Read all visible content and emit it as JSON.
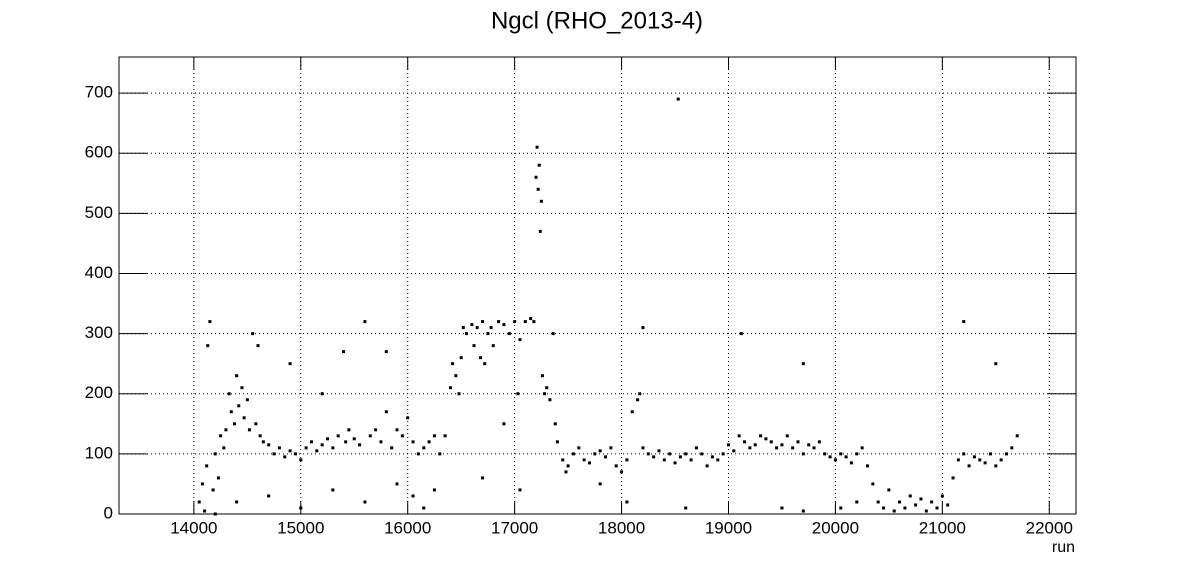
{
  "chart_data": {
    "type": "scatter",
    "title": "Ngcl (RHO_2013-4)",
    "x_label": "run",
    "xlim": [
      13300,
      22250
    ],
    "ylim": [
      0,
      760
    ],
    "xticks": [
      14000,
      15000,
      16000,
      17000,
      18000,
      19000,
      20000,
      21000,
      22000
    ],
    "yticks": [
      0,
      100,
      200,
      300,
      400,
      500,
      600,
      700
    ],
    "grid": true,
    "color": "#000000",
    "x": [
      14050,
      14080,
      14100,
      14120,
      14130,
      14150,
      14180,
      14200,
      14230,
      14250,
      14280,
      14300,
      14330,
      14350,
      14380,
      14400,
      14420,
      14450,
      14470,
      14500,
      14520,
      14550,
      14580,
      14600,
      14620,
      14650,
      14700,
      14750,
      14800,
      14850,
      14900,
      14950,
      15000,
      15050,
      15100,
      15150,
      15200,
      15250,
      15300,
      15350,
      15400,
      15420,
      15450,
      15500,
      15550,
      15600,
      15650,
      15700,
      15750,
      15800,
      15850,
      15900,
      15950,
      16000,
      16050,
      16100,
      16150,
      16200,
      16250,
      16300,
      16350,
      16400,
      16420,
      16450,
      16480,
      16500,
      16520,
      16550,
      16600,
      16620,
      16650,
      16680,
      16700,
      16720,
      16750,
      16780,
      16800,
      16850,
      16900,
      16950,
      17000,
      17030,
      17050,
      17100,
      17150,
      17180,
      17200,
      17210,
      17220,
      17230,
      17240,
      17250,
      17260,
      17280,
      17300,
      17330,
      17360,
      17380,
      17400,
      17450,
      17480,
      17500,
      17550,
      17600,
      17650,
      17700,
      17750,
      17800,
      17850,
      17900,
      17950,
      18000,
      18050,
      18100,
      18150,
      18170,
      18200,
      18250,
      18300,
      18350,
      18400,
      18450,
      18500,
      18530,
      18550,
      18600,
      18650,
      18700,
      18750,
      18800,
      18850,
      18900,
      18950,
      19000,
      19050,
      19100,
      19120,
      19150,
      19200,
      19250,
      19300,
      19350,
      19400,
      19450,
      19500,
      19550,
      19600,
      19650,
      19700,
      19750,
      19800,
      19850,
      19900,
      19950,
      20000,
      20050,
      20100,
      20150,
      20200,
      20250,
      20300,
      20350,
      20400,
      20450,
      20500,
      20550,
      20600,
      20650,
      20700,
      20750,
      20800,
      20850,
      20900,
      20950,
      21000,
      21050,
      21100,
      21150,
      21200,
      21250,
      21300,
      21350,
      21400,
      21450,
      21500,
      21550,
      21600,
      21650,
      21700,
      14200,
      14400,
      14700,
      15000,
      15300,
      15600,
      15900,
      16050,
      16150,
      16250,
      16700,
      17050,
      18050,
      18600,
      19500,
      19700,
      20050,
      20200,
      17800,
      15200,
      14900,
      15800,
      16900,
      18200,
      19700,
      21200,
      21500
    ],
    "values": [
      20,
      50,
      5,
      80,
      280,
      320,
      40,
      100,
      60,
      130,
      110,
      140,
      200,
      170,
      150,
      230,
      180,
      210,
      160,
      190,
      140,
      300,
      150,
      280,
      130,
      120,
      115,
      100,
      110,
      95,
      105,
      100,
      90,
      110,
      120,
      105,
      115,
      125,
      110,
      130,
      270,
      120,
      140,
      125,
      115,
      320,
      130,
      140,
      120,
      170,
      110,
      140,
      130,
      160,
      120,
      100,
      110,
      120,
      130,
      100,
      130,
      210,
      250,
      230,
      200,
      260,
      310,
      300,
      315,
      280,
      310,
      260,
      320,
      250,
      300,
      310,
      280,
      320,
      315,
      300,
      320,
      200,
      290,
      320,
      325,
      320,
      560,
      610,
      540,
      580,
      470,
      520,
      230,
      200,
      210,
      190,
      300,
      150,
      120,
      90,
      70,
      80,
      100,
      110,
      90,
      85,
      100,
      105,
      95,
      110,
      80,
      70,
      90,
      170,
      190,
      200,
      110,
      100,
      95,
      105,
      90,
      100,
      85,
      690,
      95,
      100,
      90,
      110,
      100,
      80,
      95,
      90,
      100,
      115,
      105,
      130,
      300,
      120,
      110,
      115,
      130,
      125,
      120,
      110,
      115,
      130,
      110,
      120,
      100,
      115,
      110,
      120,
      100,
      95,
      90,
      100,
      95,
      85,
      100,
      110,
      80,
      50,
      20,
      10,
      40,
      5,
      20,
      10,
      30,
      15,
      25,
      5,
      20,
      10,
      30,
      15,
      60,
      90,
      100,
      80,
      95,
      90,
      85,
      100,
      80,
      90,
      100,
      110,
      130,
      0,
      20,
      30,
      10,
      40,
      20,
      50,
      30,
      10,
      40,
      60,
      40,
      20,
      10,
      10,
      5,
      10,
      20,
      50,
      200,
      250,
      270,
      150,
      310,
      250,
      320,
      250
    ]
  }
}
